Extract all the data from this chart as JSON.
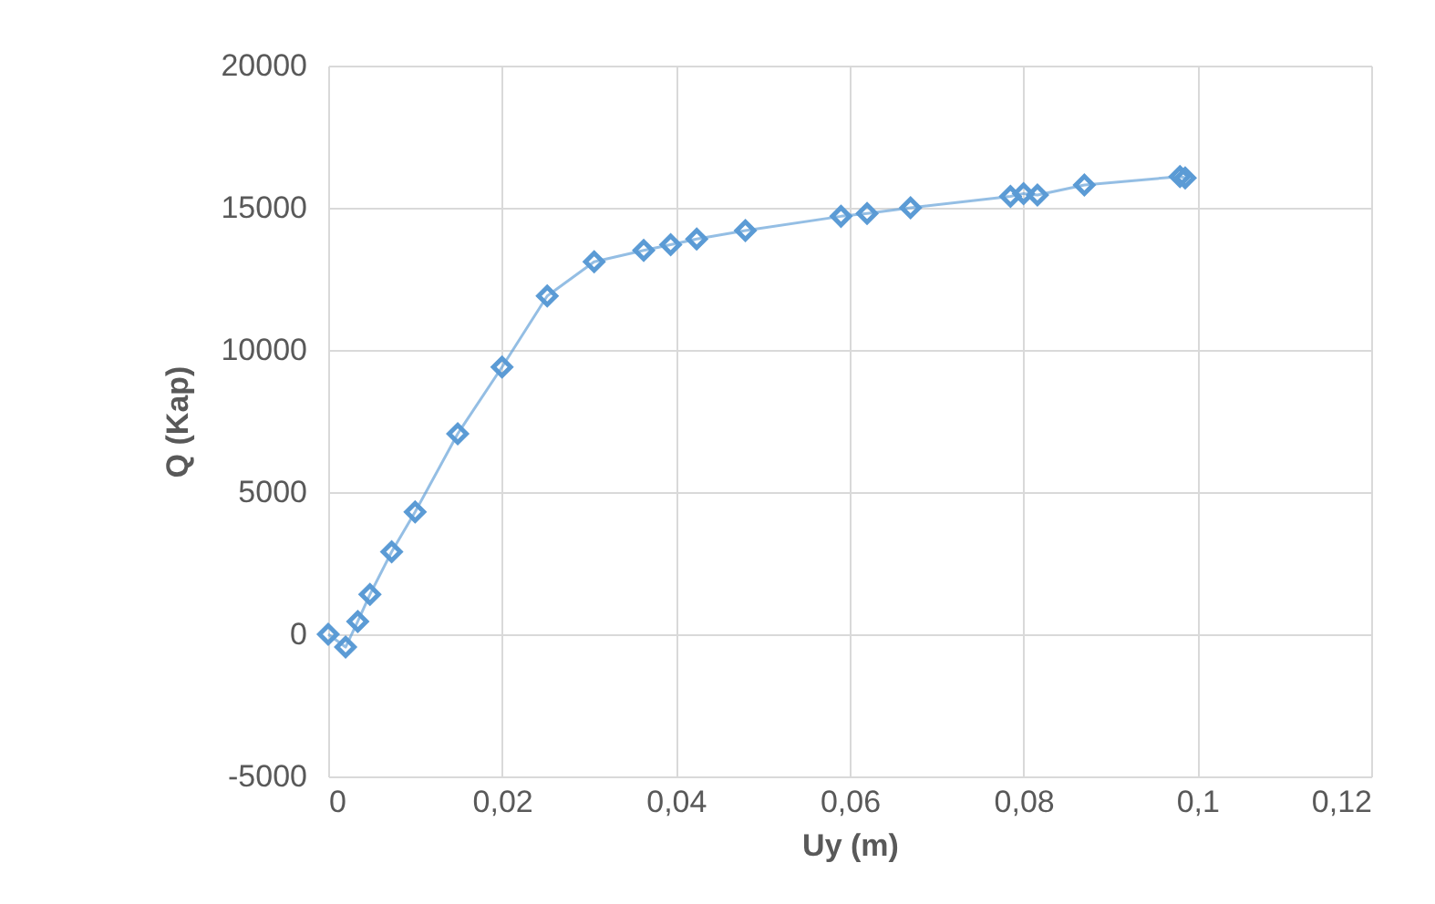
{
  "chart_data": {
    "type": "line",
    "xlabel": "Uy (m)",
    "ylabel": "Q (Kap)",
    "x": [
      0,
      0.002,
      0.0034,
      0.0048,
      0.0073,
      0.01,
      0.0149,
      0.02,
      0.0252,
      0.0306,
      0.0363,
      0.0394,
      0.0424,
      0.048,
      0.059,
      0.062,
      0.067,
      0.0785,
      0.08,
      0.0816,
      0.087,
      0.098,
      0.0986
    ],
    "series": [
      {
        "color": "#5b9bd5",
        "values": [
          0,
          -450,
          450,
          1400,
          2900,
          4300,
          7050,
          9400,
          11900,
          13100,
          13500,
          13700,
          13900,
          14200,
          14700,
          14800,
          15000,
          15400,
          15500,
          15450,
          15800,
          16100,
          16050
        ]
      }
    ],
    "xlim": [
      0,
      0.12
    ],
    "xticks": [
      0,
      {
        "value": 0.02,
        "label": "0,02"
      },
      {
        "value": 0.04,
        "label": "0,04"
      },
      {
        "value": 0.06,
        "label": "0,06"
      },
      {
        "value": 0.08,
        "label": "0,08"
      },
      {
        "value": 0.1,
        "label": "0,1"
      },
      {
        "value": 0.12,
        "label": "0,12"
      }
    ],
    "ylim": [
      -5000,
      20000
    ],
    "yticks": [
      -5000,
      0,
      5000,
      10000,
      15000,
      20000
    ],
    "grid": true,
    "legend": false,
    "marker": "diamond",
    "line_style": "solid"
  }
}
